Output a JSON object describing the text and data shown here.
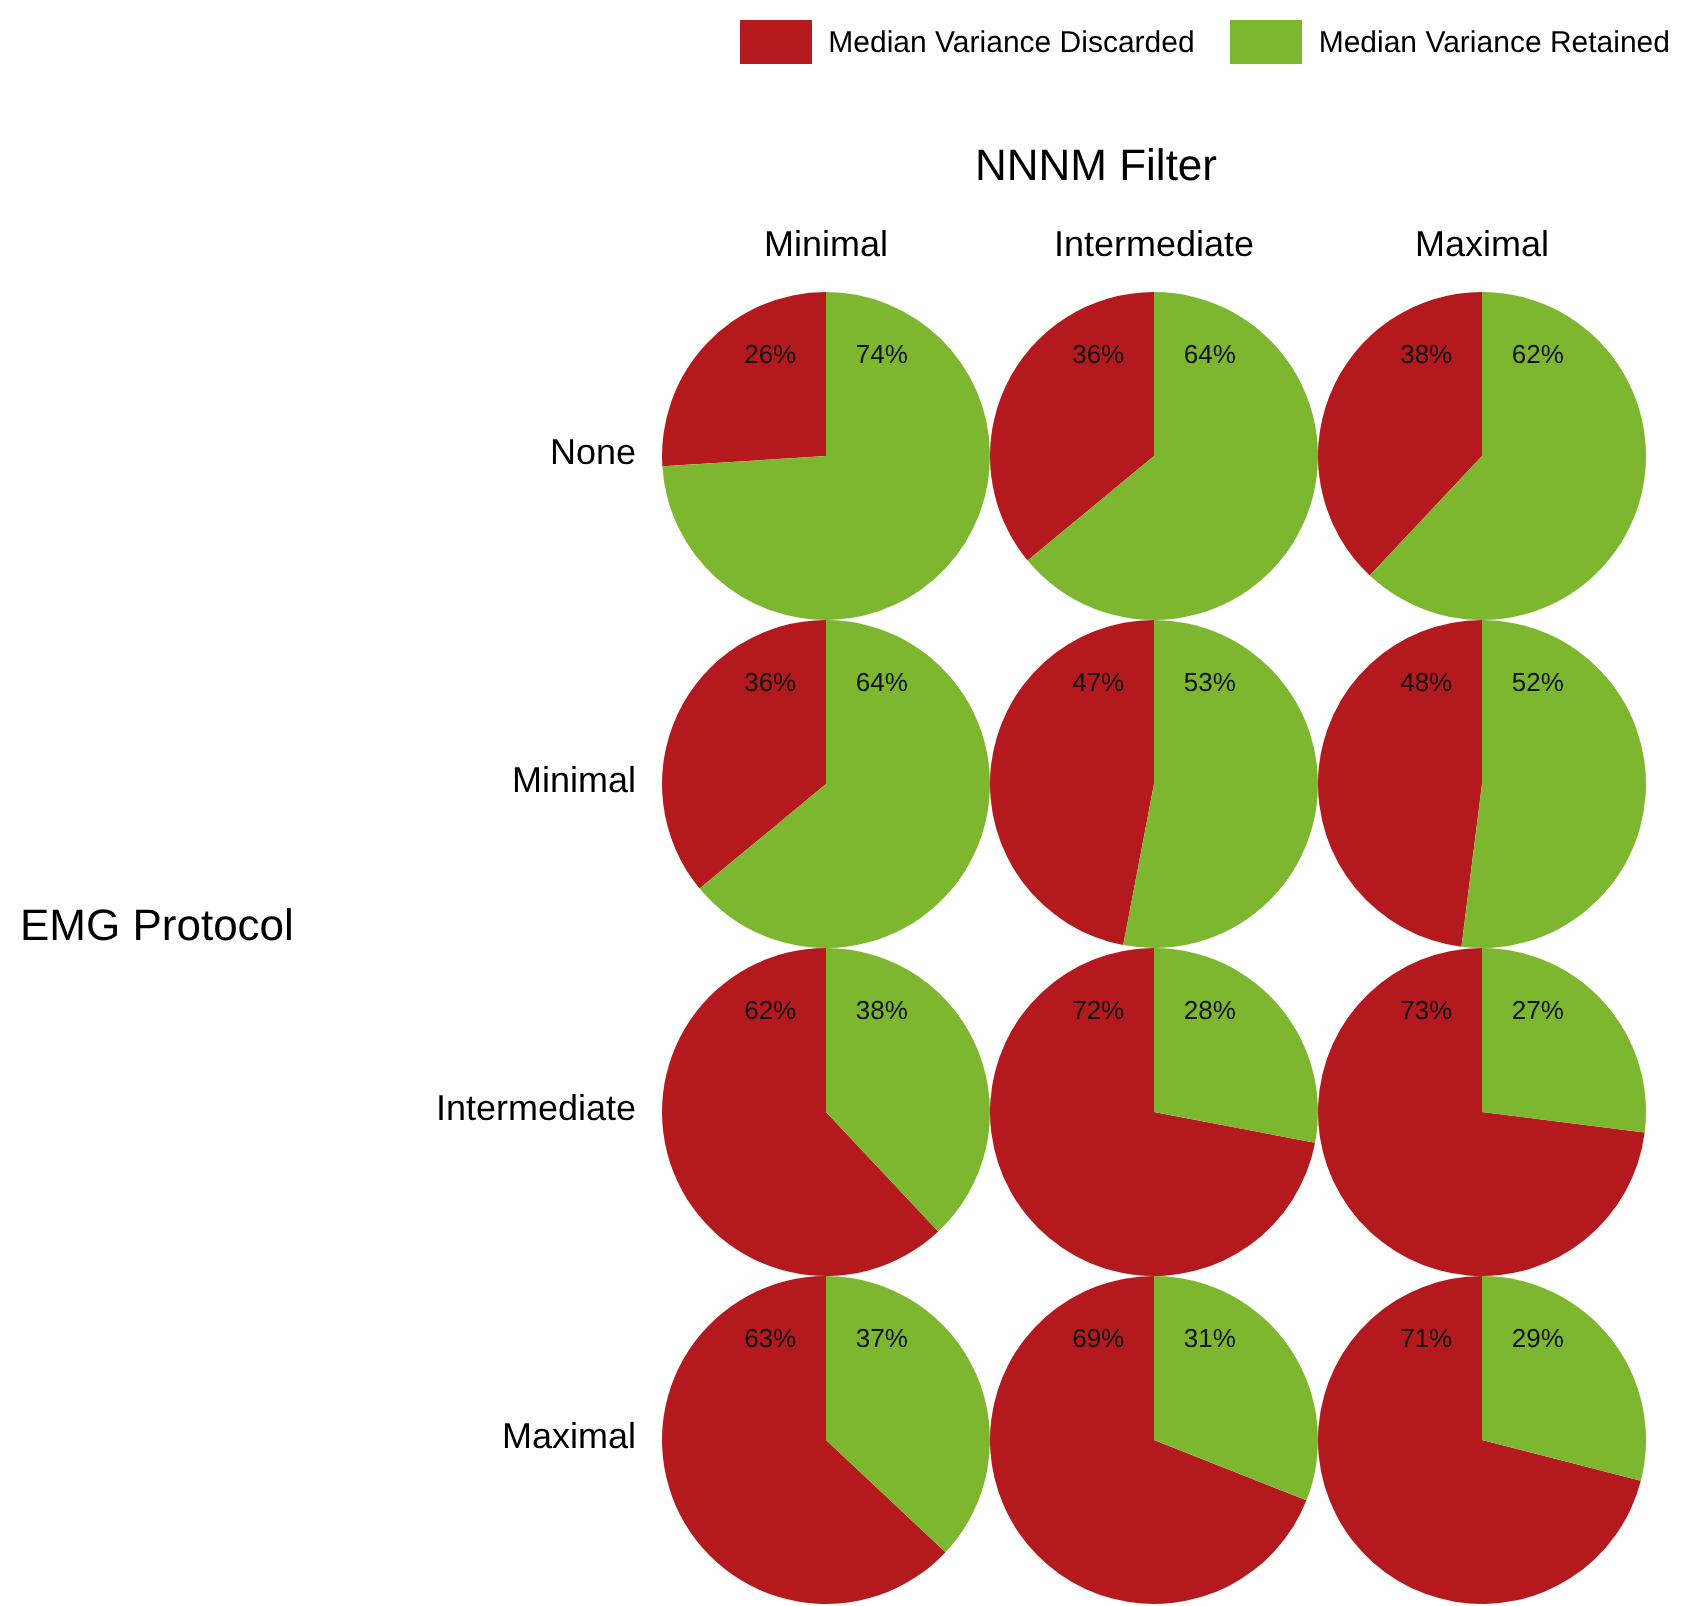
{
  "chart_data": [
    {
      "type": "pie",
      "title": "Minimal",
      "ylabel": "None",
      "annotations": [
        "NNNM Filter",
        "EMG Protocol"
      ],
      "legend": "top right",
      "categories": [
        "Median Variance Discarded",
        "Median Variance Retained"
      ],
      "values": [
        26,
        74
      ],
      "value_labels": [
        "26%",
        "74%"
      ],
      "colors": [
        "#b3191d",
        "#7db72f"
      ]
    },
    {
      "type": "pie",
      "title": "Intermediate",
      "categories": [
        null,
        null
      ],
      "values": [
        36,
        64
      ],
      "value_labels": [
        "36%",
        "64%"
      ],
      "colors": [
        "#b3191d",
        "#7db72f"
      ]
    },
    {
      "type": "pie",
      "title": "Maximal",
      "categories": [
        null,
        null
      ],
      "values": [
        38,
        62
      ],
      "value_labels": [
        "38%",
        "62%"
      ],
      "colors": [
        "#b3191d",
        "#7db72f"
      ]
    },
    {
      "type": "pie",
      "ylabel": "Minimal",
      "categories": [
        null,
        null
      ],
      "values": [
        36,
        64
      ],
      "value_labels": [
        "36%",
        "64%"
      ],
      "colors": [
        "#b3191d",
        "#7db72f"
      ]
    },
    {
      "type": "pie",
      "categories": [
        null,
        null
      ],
      "values": [
        47,
        53
      ],
      "value_labels": [
        "47%",
        "53%"
      ],
      "colors": [
        "#b3191d",
        "#7db72f"
      ]
    },
    {
      "type": "pie",
      "categories": [
        null,
        null
      ],
      "values": [
        48,
        52
      ],
      "value_labels": [
        "48%",
        "52%"
      ],
      "colors": [
        "#b3191d",
        "#7db72f"
      ]
    },
    {
      "type": "pie",
      "ylabel": "Intermediate",
      "categories": [
        null,
        null
      ],
      "values": [
        62,
        38
      ],
      "value_labels": [
        "62%",
        "38%"
      ],
      "colors": [
        "#b3191d",
        "#7db72f"
      ]
    },
    {
      "type": "pie",
      "categories": [
        null,
        null
      ],
      "values": [
        72,
        28
      ],
      "value_labels": [
        "72%",
        "28%"
      ],
      "colors": [
        "#b3191d",
        "#7db72f"
      ]
    },
    {
      "type": "pie",
      "categories": [
        null,
        null
      ],
      "values": [
        73,
        27
      ],
      "value_labels": [
        "73%",
        "27%"
      ],
      "colors": [
        "#b3191d",
        "#7db72f"
      ]
    },
    {
      "type": "pie",
      "ylabel": "Maximal",
      "categories": [
        null,
        null
      ],
      "values": [
        63,
        37
      ],
      "value_labels": [
        "63%",
        "37%"
      ],
      "colors": [
        "#b3191d",
        "#7db72f"
      ]
    },
    {
      "type": "pie",
      "categories": [
        null,
        null
      ],
      "values": [
        69,
        31
      ],
      "value_labels": [
        "69%",
        "31%"
      ],
      "colors": [
        "#b3191d",
        "#7db72f"
      ]
    },
    {
      "type": "pie",
      "categories": [
        null,
        null
      ],
      "values": [
        71,
        29
      ],
      "value_labels": [
        "71%",
        "29%"
      ],
      "colors": [
        "#b3191d",
        "#7db72f"
      ]
    }
  ]
}
